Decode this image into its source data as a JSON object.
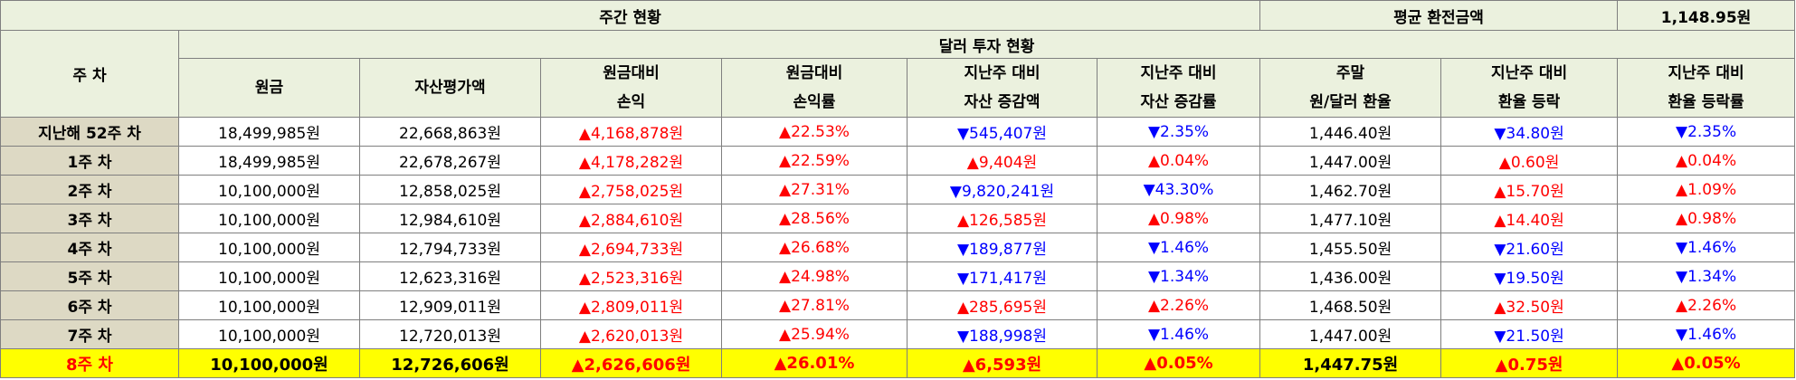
{
  "header": {
    "weekly_status": "주간 현황",
    "avg_rate_label": "평균 환전금액",
    "avg_rate_value": "1,148.95원",
    "week_col": "주 차",
    "dollar_status": "달러 투자 현황",
    "cols": [
      [
        "원금"
      ],
      [
        "자산평가액"
      ],
      [
        "원금대비",
        "손익"
      ],
      [
        "원금대비",
        "손익률"
      ],
      [
        "지난주 대비",
        "자산 증감액"
      ],
      [
        "지난주 대비",
        "자산 증감률"
      ],
      [
        "주말",
        "원/달러 환율"
      ],
      [
        "지난주 대비",
        "환율 등락"
      ],
      [
        "지난주 대비",
        "환율 등락률"
      ]
    ]
  },
  "colors": {
    "header_bg": "#ebf1de",
    "week_bg": "#ddd9c4",
    "highlight_bg": "#ffff00",
    "up": "#ff0000",
    "down": "#0000ff"
  },
  "rows": [
    {
      "week": "지난해 52주 차",
      "principal": "18,499,985원",
      "asset": "22,668,863원",
      "pl": "▲4,168,878원",
      "pl_dir": "up",
      "plr": "▲22.53%",
      "plr_dir": "up",
      "chg": "▼545,407원",
      "chg_dir": "down",
      "chgr": "▼2.35%",
      "chgr_dir": "down",
      "rate": "1,446.40원",
      "rchg": "▼34.80원",
      "rchg_dir": "down",
      "rchgr": "▼2.35%",
      "rchgr_dir": "down"
    },
    {
      "week": "1주 차",
      "principal": "18,499,985원",
      "asset": "22,678,267원",
      "pl": "▲4,178,282원",
      "pl_dir": "up",
      "plr": "▲22.59%",
      "plr_dir": "up",
      "chg": "▲9,404원",
      "chg_dir": "up",
      "chgr": "▲0.04%",
      "chgr_dir": "up",
      "rate": "1,447.00원",
      "rchg": "▲0.60원",
      "rchg_dir": "up",
      "rchgr": "▲0.04%",
      "rchgr_dir": "up"
    },
    {
      "week": "2주 차",
      "principal": "10,100,000원",
      "asset": "12,858,025원",
      "pl": "▲2,758,025원",
      "pl_dir": "up",
      "plr": "▲27.31%",
      "plr_dir": "up",
      "chg": "▼9,820,241원",
      "chg_dir": "down",
      "chgr": "▼43.30%",
      "chgr_dir": "down",
      "rate": "1,462.70원",
      "rchg": "▲15.70원",
      "rchg_dir": "up",
      "rchgr": "▲1.09%",
      "rchgr_dir": "up"
    },
    {
      "week": "3주 차",
      "principal": "10,100,000원",
      "asset": "12,984,610원",
      "pl": "▲2,884,610원",
      "pl_dir": "up",
      "plr": "▲28.56%",
      "plr_dir": "up",
      "chg": "▲126,585원",
      "chg_dir": "up",
      "chgr": "▲0.98%",
      "chgr_dir": "up",
      "rate": "1,477.10원",
      "rchg": "▲14.40원",
      "rchg_dir": "up",
      "rchgr": "▲0.98%",
      "rchgr_dir": "up"
    },
    {
      "week": "4주 차",
      "principal": "10,100,000원",
      "asset": "12,794,733원",
      "pl": "▲2,694,733원",
      "pl_dir": "up",
      "plr": "▲26.68%",
      "plr_dir": "up",
      "chg": "▼189,877원",
      "chg_dir": "down",
      "chgr": "▼1.46%",
      "chgr_dir": "down",
      "rate": "1,455.50원",
      "rchg": "▼21.60원",
      "rchg_dir": "down",
      "rchgr": "▼1.46%",
      "rchgr_dir": "down"
    },
    {
      "week": "5주 차",
      "principal": "10,100,000원",
      "asset": "12,623,316원",
      "pl": "▲2,523,316원",
      "pl_dir": "up",
      "plr": "▲24.98%",
      "plr_dir": "up",
      "chg": "▼171,417원",
      "chg_dir": "down",
      "chgr": "▼1.34%",
      "chgr_dir": "down",
      "rate": "1,436.00원",
      "rchg": "▼19.50원",
      "rchg_dir": "down",
      "rchgr": "▼1.34%",
      "rchgr_dir": "down"
    },
    {
      "week": "6주 차",
      "principal": "10,100,000원",
      "asset": "12,909,011원",
      "pl": "▲2,809,011원",
      "pl_dir": "up",
      "plr": "▲27.81%",
      "plr_dir": "up",
      "chg": "▲285,695원",
      "chg_dir": "up",
      "chgr": "▲2.26%",
      "chgr_dir": "up",
      "rate": "1,468.50원",
      "rchg": "▲32.50원",
      "rchg_dir": "up",
      "rchgr": "▲2.26%",
      "rchgr_dir": "up"
    },
    {
      "week": "7주 차",
      "principal": "10,100,000원",
      "asset": "12,720,013원",
      "pl": "▲2,620,013원",
      "pl_dir": "up",
      "plr": "▲25.94%",
      "plr_dir": "up",
      "chg": "▼188,998원",
      "chg_dir": "down",
      "chgr": "▼1.46%",
      "chgr_dir": "down",
      "rate": "1,447.00원",
      "rchg": "▼21.50원",
      "rchg_dir": "down",
      "rchgr": "▼1.46%",
      "rchgr_dir": "down"
    },
    {
      "week": "8주 차",
      "principal": "10,100,000원",
      "asset": "12,726,606원",
      "pl": "▲2,626,606원",
      "pl_dir": "up",
      "plr": "▲26.01%",
      "plr_dir": "up",
      "chg": "▲6,593원",
      "chg_dir": "up",
      "chgr": "▲0.05%",
      "chgr_dir": "up",
      "rate": "1,447.75원",
      "rchg": "▲0.75원",
      "rchg_dir": "up",
      "rchgr": "▲0.05%",
      "rchgr_dir": "up"
    }
  ]
}
